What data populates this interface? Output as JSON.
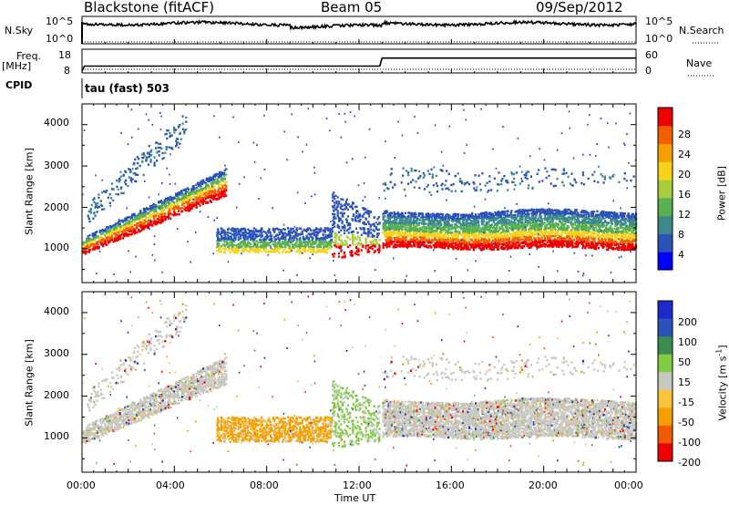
{
  "header": {
    "station": "Blackstone (fitACF)",
    "beam": "Beam 05",
    "date": "09/Sep/2012"
  },
  "top_panels": {
    "nsky_label": "N.Sky",
    "nsearch_label": "N.Search",
    "log_high": "10^5",
    "log_low": "10^0",
    "freq_label": "Freq.",
    "freq_unit": "[MHz]",
    "freq_ticks": [
      "18",
      "8"
    ],
    "nave_label": "Nave",
    "nave_ticks": [
      "60",
      "0"
    ],
    "cpid_label": "CPID",
    "cpid_value": "tau (fast) 503"
  },
  "colors": {
    "power": [
      "#0000ff",
      "#2a52b8",
      "#3e8a8a",
      "#58b050",
      "#a8cc3a",
      "#f7d11c",
      "#f5a000",
      "#f06000",
      "#ee0000"
    ],
    "velocity": [
      "#ee0000",
      "#f05a00",
      "#f5a000",
      "#f7c43c",
      "#c8c8c0",
      "#c8c8c0",
      "#80cc40",
      "#3c8c50",
      "#2a52b8",
      "#1c2acc"
    ]
  },
  "chart_data": [
    {
      "type": "heatmap",
      "title": "Power",
      "xlabel": "Time UT",
      "ylabel": "Slant Range [km]",
      "xlim": [
        0,
        24
      ],
      "ylim": [
        180,
        4500
      ],
      "xticks": [
        "00:00",
        "04:00",
        "08:00",
        "12:00",
        "16:00",
        "20:00",
        "00:00"
      ],
      "yticks": [
        1000,
        2000,
        3000,
        4000
      ],
      "colorbar": {
        "label": "Power [dB]",
        "range": [
          0,
          32
        ],
        "ticks": [
          4,
          8,
          12,
          16,
          20,
          24,
          28
        ]
      }
    },
    {
      "type": "heatmap",
      "title": "Velocity",
      "xlabel": "Time UT",
      "ylabel": "Slant Range [km]",
      "xlim": [
        0,
        24
      ],
      "ylim": [
        180,
        4500
      ],
      "xticks": [
        "00:00",
        "04:00",
        "08:00",
        "12:00",
        "16:00",
        "20:00",
        "00:00"
      ],
      "yticks": [
        1000,
        2000,
        3000,
        4000
      ],
      "colorbar": {
        "label": "Velocity [m s-1]",
        "ticks": [
          200,
          100,
          50,
          15,
          -15,
          -50,
          -100,
          -200
        ]
      }
    }
  ],
  "freq_series": {
    "x": [
      0,
      0.1,
      12.9,
      13.0,
      24
    ],
    "y": [
      8,
      10.5,
      10.5,
      14.5,
      14.5
    ]
  },
  "nave_series": {
    "x": [
      0,
      24
    ],
    "y": [
      0,
      0
    ]
  },
  "velocity_colorbar_label_plain": "Velocity [m s",
  "velocity_colorbar_sup": "-1",
  "velocity_colorbar_close": "]"
}
